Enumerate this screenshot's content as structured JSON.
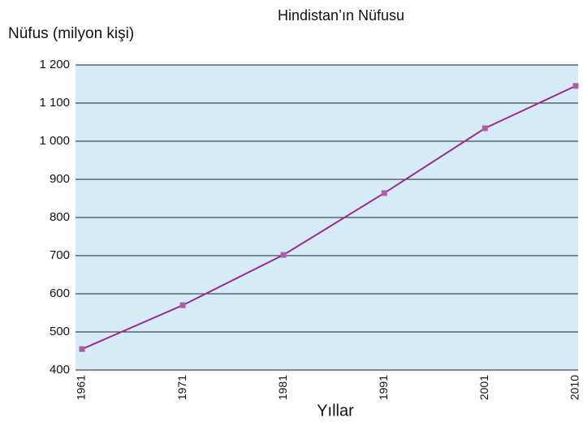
{
  "chart_data": {
    "type": "line",
    "title": "Hindistan’ın Nüfusu",
    "ylabel": "Nüfus (milyon kişi)",
    "xlabel": "Yıllar",
    "x": [
      1961,
      1971,
      1981,
      1991,
      2001,
      2010
    ],
    "series": [
      {
        "name": "Nüfus",
        "color": "#9b2a8c",
        "marker_color": "#b25ea6",
        "values": [
          455,
          570,
          702,
          864,
          1034,
          1145
        ]
      }
    ],
    "xlim": [
      1961,
      2010
    ],
    "xticks": [
      1961,
      1971,
      1981,
      1991,
      2001,
      2010
    ],
    "ylim": [
      400,
      1200
    ],
    "yticks": [
      400,
      500,
      600,
      700,
      800,
      900,
      {
        "value": 1000,
        "label": "1 000"
      },
      {
        "value": 1100,
        "label": "1 100"
      },
      {
        "value": 1200,
        "label": "1 200"
      }
    ],
    "grid": true,
    "background": "#d5ecf8"
  }
}
